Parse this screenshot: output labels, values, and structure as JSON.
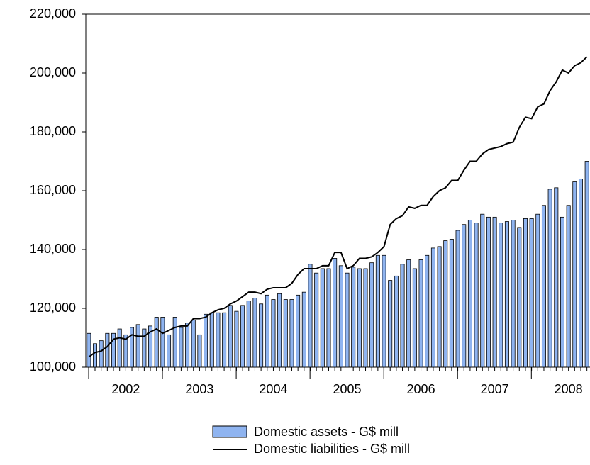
{
  "chart_data": {
    "type": "bar-line",
    "categories": [
      null,
      null,
      null,
      null,
      null,
      null,
      "2002",
      null,
      null,
      null,
      null,
      null,
      null,
      null,
      null,
      null,
      null,
      null,
      "2003",
      null,
      null,
      null,
      null,
      null,
      null,
      null,
      null,
      null,
      null,
      null,
      "2004",
      null,
      null,
      null,
      null,
      null,
      null,
      null,
      null,
      null,
      null,
      null,
      "2005",
      null,
      null,
      null,
      null,
      null,
      null,
      null,
      null,
      null,
      null,
      null,
      "2006",
      null,
      null,
      null,
      null,
      null,
      null,
      null,
      null,
      null,
      null,
      null,
      "2007",
      null,
      null,
      null,
      null,
      null,
      null,
      null,
      null,
      null,
      null,
      null,
      "2008",
      null,
      null,
      null
    ],
    "series": [
      {
        "name": "Domestic assets - G$ mill",
        "color": "#8fb4f0",
        "values": [
          111500,
          108000,
          109000,
          111500,
          111500,
          113000,
          111000,
          113500,
          114500,
          113000,
          114000,
          117000,
          117000,
          111000,
          117000,
          113500,
          115000,
          116000,
          111000,
          118000,
          118500,
          118500,
          118500,
          121000,
          119000,
          121000,
          122500,
          123500,
          121500,
          124500,
          123000,
          125000,
          123000,
          123000,
          124500,
          125500,
          135000,
          132000,
          133500,
          133500,
          137000,
          134500,
          132000,
          134000,
          133500,
          133500,
          135500,
          138000,
          138000,
          129500,
          131000,
          135000,
          136500,
          133500,
          136500,
          138000,
          140500,
          141000,
          143000,
          143500,
          146500,
          148500,
          150000,
          149000,
          152000,
          151000,
          151000,
          149000,
          149500,
          150000,
          147500,
          150500,
          150500,
          152000,
          155000,
          160500,
          161000,
          151000,
          155000,
          163000,
          164000,
          170000
        ]
      },
      {
        "name": "Domestic liabilities - G$ mill",
        "color": "#000000",
        "values": [
          103500,
          105000,
          105500,
          107000,
          109500,
          110000,
          109500,
          111000,
          110500,
          110500,
          112000,
          113000,
          111500,
          112500,
          113500,
          114000,
          114000,
          116500,
          116500,
          117000,
          118500,
          119500,
          120000,
          121500,
          122500,
          124000,
          125500,
          125500,
          125000,
          126500,
          127000,
          127000,
          127000,
          128500,
          131500,
          133500,
          133500,
          133500,
          134500,
          134500,
          139000,
          139000,
          133500,
          134500,
          137000,
          137000,
          137500,
          139000,
          141000,
          148500,
          150500,
          151500,
          154500,
          154000,
          155000,
          155000,
          158000,
          160000,
          161000,
          163500,
          163500,
          167000,
          170000,
          170000,
          172500,
          174000,
          174500,
          175000,
          176000,
          176500,
          181500,
          185000,
          184500,
          188500,
          189500,
          194000,
          197000,
          201000,
          200000,
          202500,
          203500,
          205500
        ]
      }
    ],
    "ylim": [
      100000,
      220000
    ],
    "yticks": [
      {
        "value": 100000,
        "label": "100,000"
      },
      {
        "value": 120000,
        "label": "120,000"
      },
      {
        "value": 140000,
        "label": "140,000"
      },
      {
        "value": 160000,
        "label": "160,000"
      },
      {
        "value": 180000,
        "label": "180,000"
      },
      {
        "value": 200000,
        "label": "200,000"
      },
      {
        "value": 220000,
        "label": "220,000"
      }
    ],
    "legend": "bottom"
  }
}
